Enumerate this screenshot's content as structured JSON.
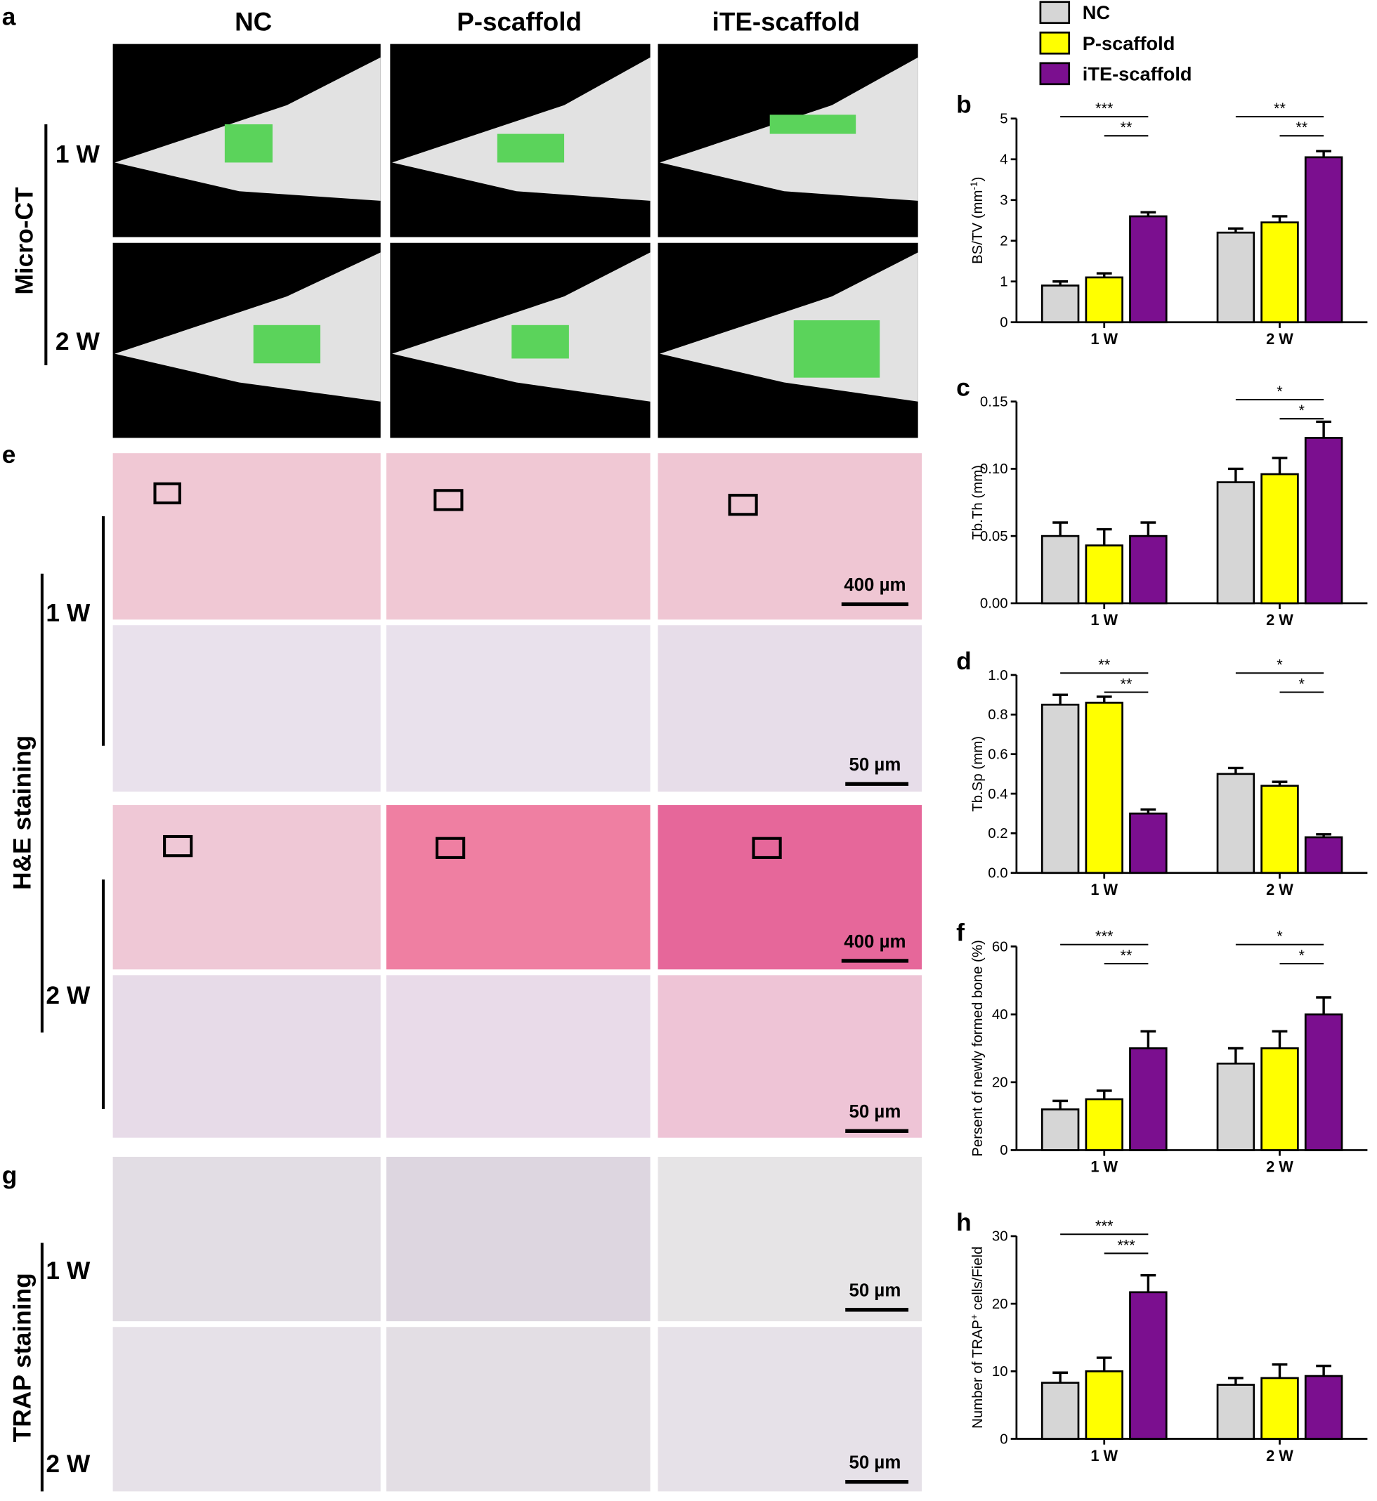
{
  "microct": {
    "label": "a",
    "columns": [
      "NC",
      "P-scaffold",
      "iTE-scaffold"
    ],
    "group": "Micro-CT",
    "rows": [
      "1 W",
      "2 W"
    ]
  },
  "he": {
    "label": "e",
    "group": "H&E staining",
    "rows": [
      "1 W",
      "2 W"
    ],
    "scale_bars": [
      "400 µm",
      "50 µm",
      "400 µm",
      "50 µm"
    ]
  },
  "trap": {
    "label": "g",
    "group": "TRAP staining",
    "rows": [
      "1 W",
      "2 W"
    ],
    "scale_bars": [
      "50 µm",
      "50 µm"
    ]
  },
  "chart_data": [
    {
      "type": "bar",
      "label": "b",
      "ylabel": [
        "BS/TV (mm",
        "-1",
        ")"
      ],
      "categories": [
        "1 W",
        "2 W"
      ],
      "series": [
        {
          "name": "NC",
          "color": "#d6d6d6",
          "values": [
            0.9,
            2.2
          ],
          "errors": [
            0.1,
            0.1
          ]
        },
        {
          "name": "P-scaffold",
          "color": "#ffff00",
          "values": [
            1.1,
            2.45
          ],
          "errors": [
            0.1,
            0.15
          ]
        },
        {
          "name": "iTE-scaffold",
          "color": "#7b0f8f",
          "values": [
            2.6,
            4.05
          ],
          "errors": [
            0.1,
            0.15
          ]
        }
      ],
      "ylim": [
        0,
        5
      ],
      "yticks": [
        0,
        1,
        2,
        3,
        4,
        5
      ],
      "significance": [
        [
          "***",
          "**"
        ],
        [
          "**",
          "**"
        ]
      ]
    },
    {
      "type": "bar",
      "label": "c",
      "ylabel": [
        "Tb.Th (mm)"
      ],
      "categories": [
        "1 W",
        "2 W"
      ],
      "series": [
        {
          "color": "#d6d6d6",
          "values": [
            0.05,
            0.09
          ],
          "errors": [
            0.01,
            0.01
          ]
        },
        {
          "color": "#ffff00",
          "values": [
            0.043,
            0.096
          ],
          "errors": [
            0.012,
            0.012
          ]
        },
        {
          "color": "#7b0f8f",
          "values": [
            0.05,
            0.123
          ],
          "errors": [
            0.01,
            0.012
          ]
        }
      ],
      "ylim": [
        0,
        0.15
      ],
      "yticks": [
        {
          "value": 0,
          "label": "0.00"
        },
        {
          "value": 0.05,
          "label": "0.05"
        },
        {
          "value": 0.1,
          "label": "0.10"
        },
        {
          "value": 0.15,
          "label": "0.15"
        }
      ],
      "significance": [
        [],
        [
          "*",
          "*"
        ]
      ]
    },
    {
      "type": "bar",
      "label": "d",
      "ylabel": [
        "Tb.Sp (mm)"
      ],
      "categories": [
        "1 W",
        "2 W"
      ],
      "series": [
        {
          "color": "#d6d6d6",
          "values": [
            0.85,
            0.5
          ],
          "errors": [
            0.05,
            0.03
          ]
        },
        {
          "color": "#ffff00",
          "values": [
            0.86,
            0.44
          ],
          "errors": [
            0.03,
            0.02
          ]
        },
        {
          "color": "#7b0f8f",
          "values": [
            0.3,
            0.18
          ],
          "errors": [
            0.02,
            0.015
          ]
        }
      ],
      "ylim": [
        0,
        1
      ],
      "yticks": [
        {
          "value": 0,
          "label": "0.0"
        },
        0.2,
        0.4,
        0.6,
        0.8,
        {
          "value": 1,
          "label": "1.0"
        }
      ],
      "significance": [
        [
          "**",
          "**"
        ],
        [
          "*",
          "*"
        ]
      ]
    },
    {
      "type": "bar",
      "label": "f",
      "ylabel": [
        "Persent of newly formed bone (%)"
      ],
      "categories": [
        "1 W",
        "2 W"
      ],
      "series": [
        {
          "color": "#d6d6d6",
          "values": [
            12,
            25.5
          ],
          "errors": [
            2.5,
            4.5
          ]
        },
        {
          "color": "#ffff00",
          "values": [
            15,
            30
          ],
          "errors": [
            2.5,
            5
          ]
        },
        {
          "color": "#7b0f8f",
          "values": [
            30,
            40
          ],
          "errors": [
            5,
            5
          ]
        }
      ],
      "ylim": [
        0,
        60
      ],
      "yticks": [
        0,
        20,
        40,
        60
      ],
      "significance": [
        [
          "***",
          "**"
        ],
        [
          "*",
          "*"
        ]
      ]
    },
    {
      "type": "bar",
      "label": "h",
      "ylabel": [
        "Number of TRAP",
        "+",
        " cells/Field"
      ],
      "categories": [
        "1 W",
        "2 W"
      ],
      "series": [
        {
          "color": "#d6d6d6",
          "values": [
            8.3,
            8
          ],
          "errors": [
            1.5,
            1
          ]
        },
        {
          "color": "#ffff00",
          "values": [
            10,
            9
          ],
          "errors": [
            2,
            2
          ]
        },
        {
          "color": "#7b0f8f",
          "values": [
            21.7,
            9.3
          ],
          "errors": [
            2.5,
            1.5
          ]
        }
      ],
      "ylim": [
        0,
        30
      ],
      "yticks": [
        0,
        10,
        20,
        30
      ],
      "significance": [
        [
          "***",
          "***"
        ],
        []
      ]
    }
  ]
}
